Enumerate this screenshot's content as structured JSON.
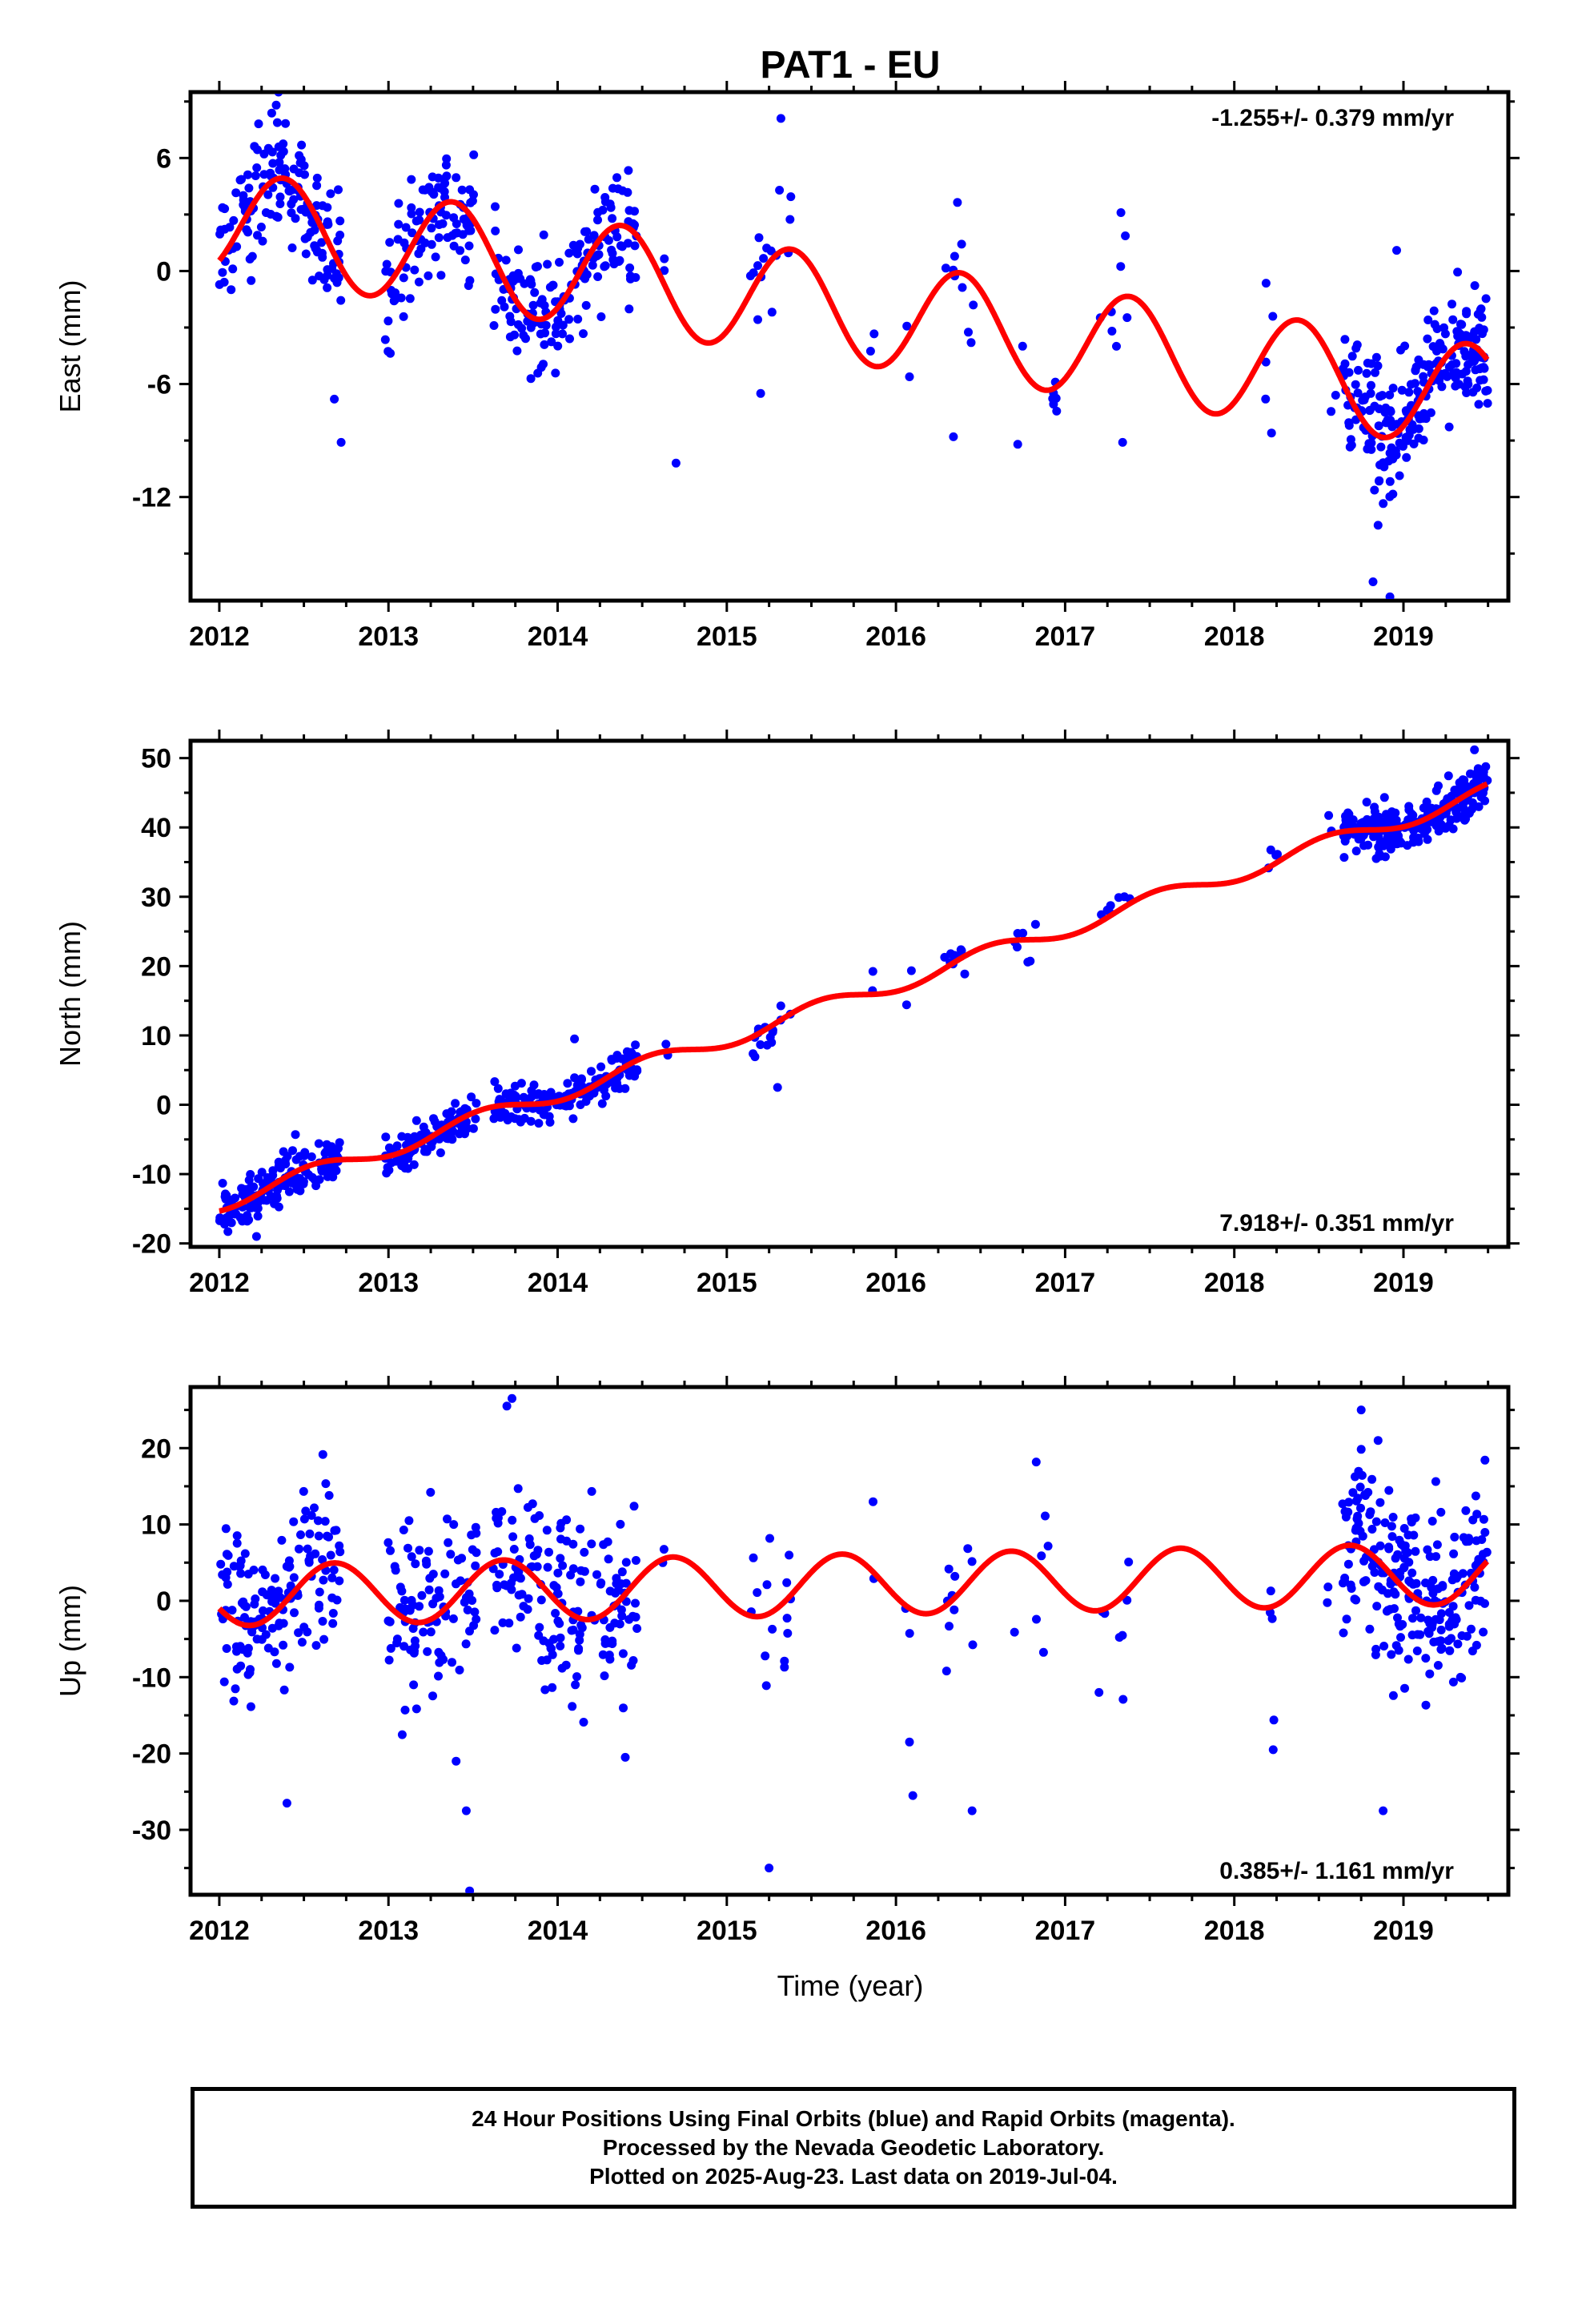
{
  "title": "PAT1 - EU",
  "colors": {
    "points": "#0000ff",
    "model": "#ff0000",
    "frame": "#000000"
  },
  "xlabel": "Time (year)",
  "caption": {
    "line1": "24 Hour Positions Using Final Orbits (blue) and Rapid Orbits (magenta).",
    "line2": "Processed by the Nevada Geodetic Laboratory.",
    "line3": "Plotted on 2025-Aug-23. Last data on 2019-Jul-04."
  },
  "chart_data": [
    {
      "type": "scatter",
      "component": "east",
      "ylabel": "East (mm)",
      "rate": "-1.255+/- 0.379 mm/yr",
      "xlim": [
        2011.83,
        2019.62
      ],
      "ylim": [
        -17.5,
        9.5
      ],
      "xticks": [
        2012,
        2013,
        2014,
        2015,
        2016,
        2017,
        2018,
        2019
      ],
      "yticks": [
        6,
        0,
        -6,
        -12
      ],
      "model": {
        "intercept": 2.6,
        "slope": -1.255,
        "amplitude": 2.8,
        "peak_phase": 0.38
      },
      "outliers": [
        [
          2012.35,
          9.5
        ],
        [
          2012.68,
          -6.8
        ],
        [
          2012.72,
          -9.1
        ],
        [
          2014.7,
          -10.2
        ],
        [
          2015.2,
          -6.5
        ],
        [
          2015.32,
          8.1
        ],
        [
          2016.34,
          -8.8
        ],
        [
          2016.72,
          -9.2
        ],
        [
          2017.34,
          -9.1
        ],
        [
          2017.33,
          3.1
        ],
        [
          2018.22,
          -8.6
        ],
        [
          2018.85,
          -13.5
        ],
        [
          2018.82,
          -16.5
        ],
        [
          2018.92,
          -17.3
        ],
        [
          2018.96,
          1.1
        ]
      ]
    },
    {
      "type": "scatter",
      "component": "north",
      "ylabel": "North (mm)",
      "rate": "7.918+/- 0.351 mm/yr",
      "xlim": [
        2011.83,
        2019.62
      ],
      "ylim": [
        -20.5,
        52.5
      ],
      "xticks": [
        2012,
        2013,
        2014,
        2015,
        2016,
        2017,
        2018,
        2019
      ],
      "yticks": [
        50,
        40,
        30,
        20,
        10,
        0,
        -10,
        -20
      ],
      "model": {
        "intercept": -14.2,
        "slope": 7.918,
        "amplitude": 1.2,
        "peak_phase": 0.55
      },
      "outliers": [
        [
          2012.22,
          -19
        ],
        [
          2012.45,
          -4.3
        ],
        [
          2014.1,
          9.5
        ],
        [
          2019.42,
          51.2
        ],
        [
          2015.3,
          2.5
        ],
        [
          2017.35,
          30
        ]
      ]
    },
    {
      "type": "scatter",
      "component": "up",
      "ylabel": "Up (mm)",
      "rate": "0.385+/- 1.161 mm/yr",
      "xlim": [
        2011.83,
        2019.62
      ],
      "ylim": [
        -38.5,
        28
      ],
      "xticks": [
        2012,
        2013,
        2014,
        2015,
        2016,
        2017,
        2018,
        2019
      ],
      "yticks": [
        20,
        10,
        0,
        -10,
        -20,
        -30
      ],
      "model": {
        "intercept": 0.7,
        "slope": 0.385,
        "amplitude": 4.0,
        "peak_phase": 0.68
      },
      "outliers": [
        [
          2012.4,
          -26.5
        ],
        [
          2013.4,
          -21
        ],
        [
          2013.46,
          -27.5
        ],
        [
          2013.48,
          -38
        ],
        [
          2013.7,
          25.5
        ],
        [
          2013.73,
          26.5
        ],
        [
          2015.25,
          -35
        ],
        [
          2016.1,
          -25.5
        ],
        [
          2016.08,
          -18.5
        ],
        [
          2016.45,
          -27.5
        ],
        [
          2018.75,
          25
        ],
        [
          2018.85,
          21
        ],
        [
          2018.88,
          -27.5
        ],
        [
          2018.23,
          -19.5
        ],
        [
          2017.2,
          -12
        ],
        [
          2014.4,
          -20.5
        ]
      ]
    }
  ]
}
